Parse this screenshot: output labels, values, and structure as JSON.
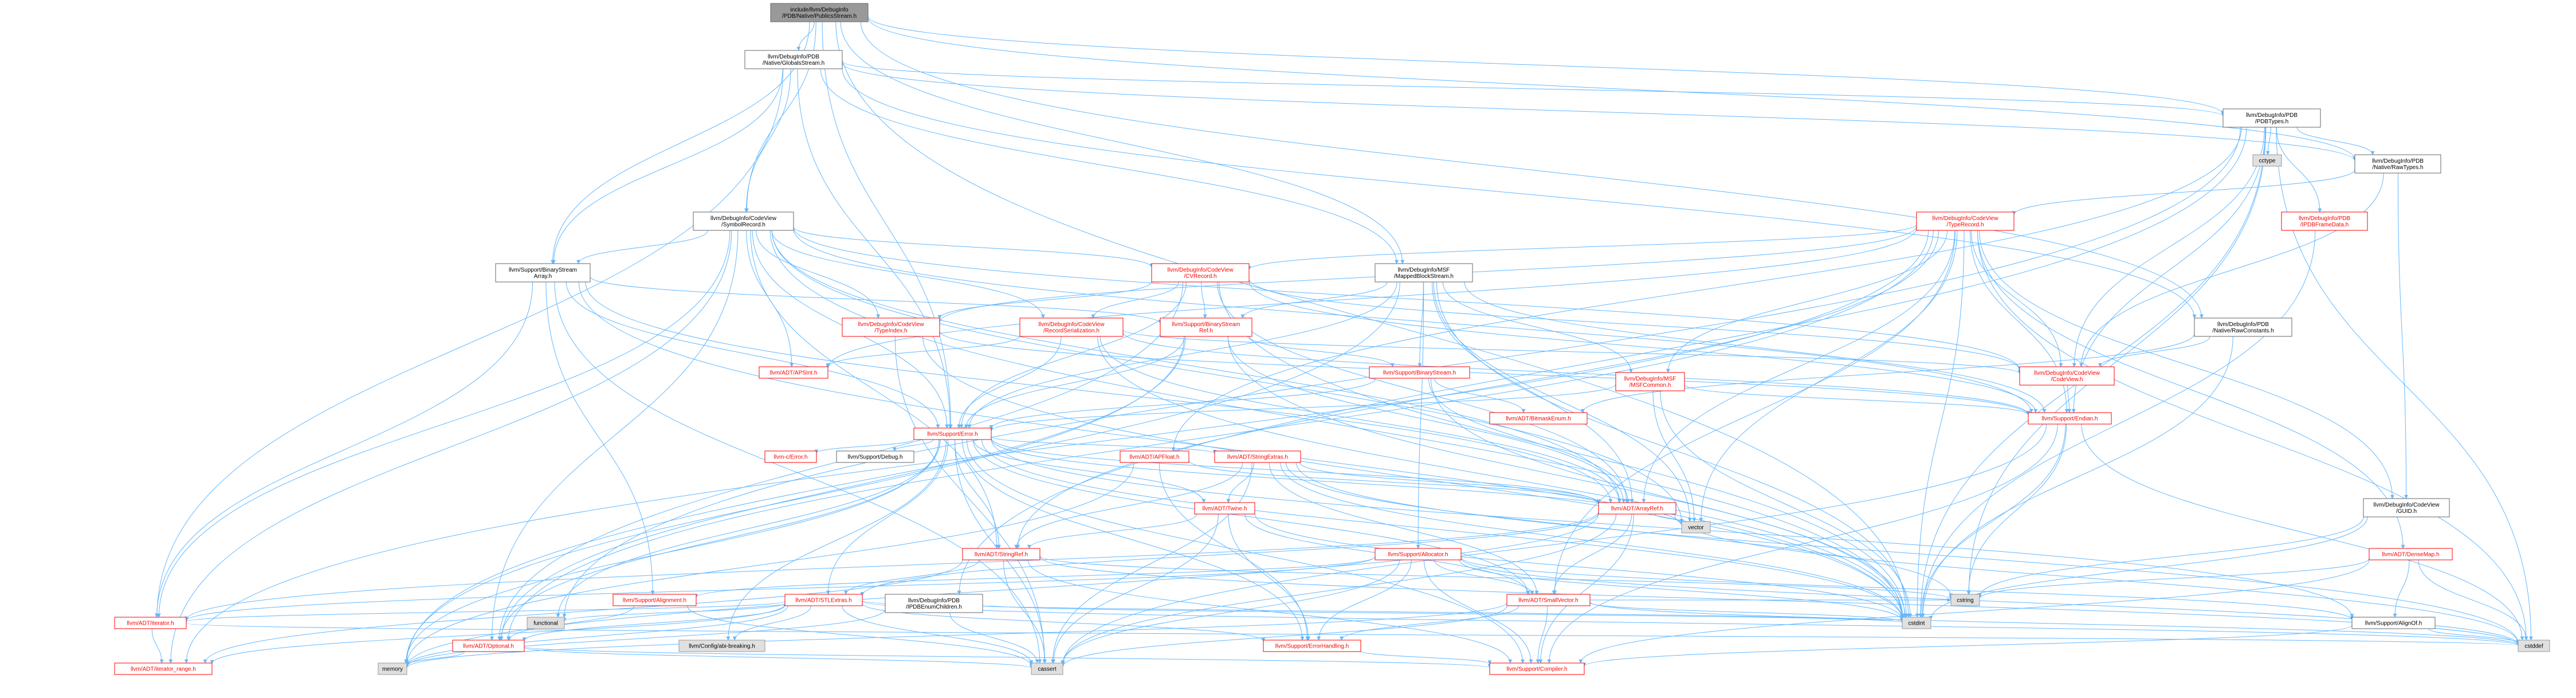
{
  "graph": {
    "colors": {
      "edge": "#63b8ff",
      "red_text": "#ff0000",
      "root_fill": "#999999",
      "system_fill": "#e0e0e0"
    },
    "nodes": {
      "root": [
        "include/llvm/DebugInfo",
        "/PDB/Native/PublicsStream.h"
      ],
      "globals": [
        "llvm/DebugInfo/PDB",
        "/Native/GlobalsStream.h"
      ],
      "pdbtypes": [
        "llvm/DebugInfo/PDB",
        "/PDBTypes.h"
      ],
      "rawtypes": [
        "llvm/DebugInfo/PDB",
        "/Native/RawTypes.h"
      ],
      "cctype": [
        "cctype"
      ],
      "symrec": [
        "llvm/DebugInfo/CodeView",
        "/SymbolRecord.h"
      ],
      "typerec": [
        "llvm/DebugInfo/CodeView",
        "/TypeRecord.h"
      ],
      "pdbframe": [
        "llvm/DebugInfo/PDB",
        "/IPDBFrameData.h"
      ],
      "bstreamarray": [
        "llvm/Support/BinaryStream",
        "Array.h"
      ],
      "cvrecord": [
        "llvm/DebugInfo/CodeView",
        "/CVRecord.h"
      ],
      "mappedblock": [
        "llvm/DebugInfo/MSF",
        "/MappedBlockStream.h"
      ],
      "typeindex": [
        "llvm/DebugInfo/CodeView",
        "/TypeIndex.h"
      ],
      "recser": [
        "llvm/DebugInfo/CodeView",
        "/RecordSerialization.h"
      ],
      "bstreamref": [
        "llvm/Support/BinaryStream",
        "Ref.h"
      ],
      "rawconst": [
        "llvm/DebugInfo/PDB",
        "/Native/RawConstants.h"
      ],
      "apsint": [
        "llvm/ADT/APSInt.h"
      ],
      "bstream": [
        "llvm/Support/BinaryStream.h"
      ],
      "msfcommon": [
        "llvm/DebugInfo/MSF",
        "/MSFCommon.h"
      ],
      "codeview": [
        "llvm/DebugInfo/CodeView",
        "/CodeView.h"
      ],
      "bitmask": [
        "llvm/ADT/BitmaskEnum.h"
      ],
      "endian": [
        "llvm/Support/Endian.h"
      ],
      "error": [
        "llvm/Support/Error.h"
      ],
      "cerror": [
        "llvm-c/Error.h"
      ],
      "debug": [
        "llvm/Support/Debug.h"
      ],
      "apfloat": [
        "llvm/ADT/APFloat.h"
      ],
      "strextras": [
        "llvm/ADT/StringExtras.h"
      ],
      "arrayref": [
        "llvm/ADT/ArrayRef.h"
      ],
      "guid": [
        "llvm/DebugInfo/CodeView",
        "/GUID.h"
      ],
      "twine": [
        "llvm/ADT/Twine.h"
      ],
      "vector": [
        "vector"
      ],
      "stringref": [
        "llvm/ADT/StringRef.h"
      ],
      "allocator": [
        "llvm/Support/Allocator.h"
      ],
      "densemap": [
        "llvm/ADT/DenseMap.h"
      ],
      "alignment": [
        "llvm/Support/Alignment.h"
      ],
      "stlextras": [
        "llvm/ADT/STLExtras.h"
      ],
      "enumchildren": [
        "llvm/DebugInfo/PDB",
        "/IPDBEnumChildren.h"
      ],
      "smallvector": [
        "llvm/ADT/SmallVector.h"
      ],
      "cstring": [
        "cstring"
      ],
      "cstdint": [
        "cstdint"
      ],
      "alignof": [
        "llvm/Support/AlignOf.h"
      ],
      "iterator": [
        "llvm/ADT/iterator.h"
      ],
      "functional": [
        "functional"
      ],
      "optional": [
        "llvm/ADT/Optional.h"
      ],
      "configbreaking": [
        "llvm/Config/abi-breaking.h"
      ],
      "errorhandling": [
        "llvm/Support/ErrorHandling.h"
      ],
      "cstddef": [
        "cstddef"
      ],
      "iterrange": [
        "llvm/ADT/iterator_range.h"
      ],
      "memory": [
        "memory"
      ],
      "cassert": [
        "cassert"
      ],
      "compiler": [
        "llvm/Support/Compiler.h"
      ]
    }
  }
}
